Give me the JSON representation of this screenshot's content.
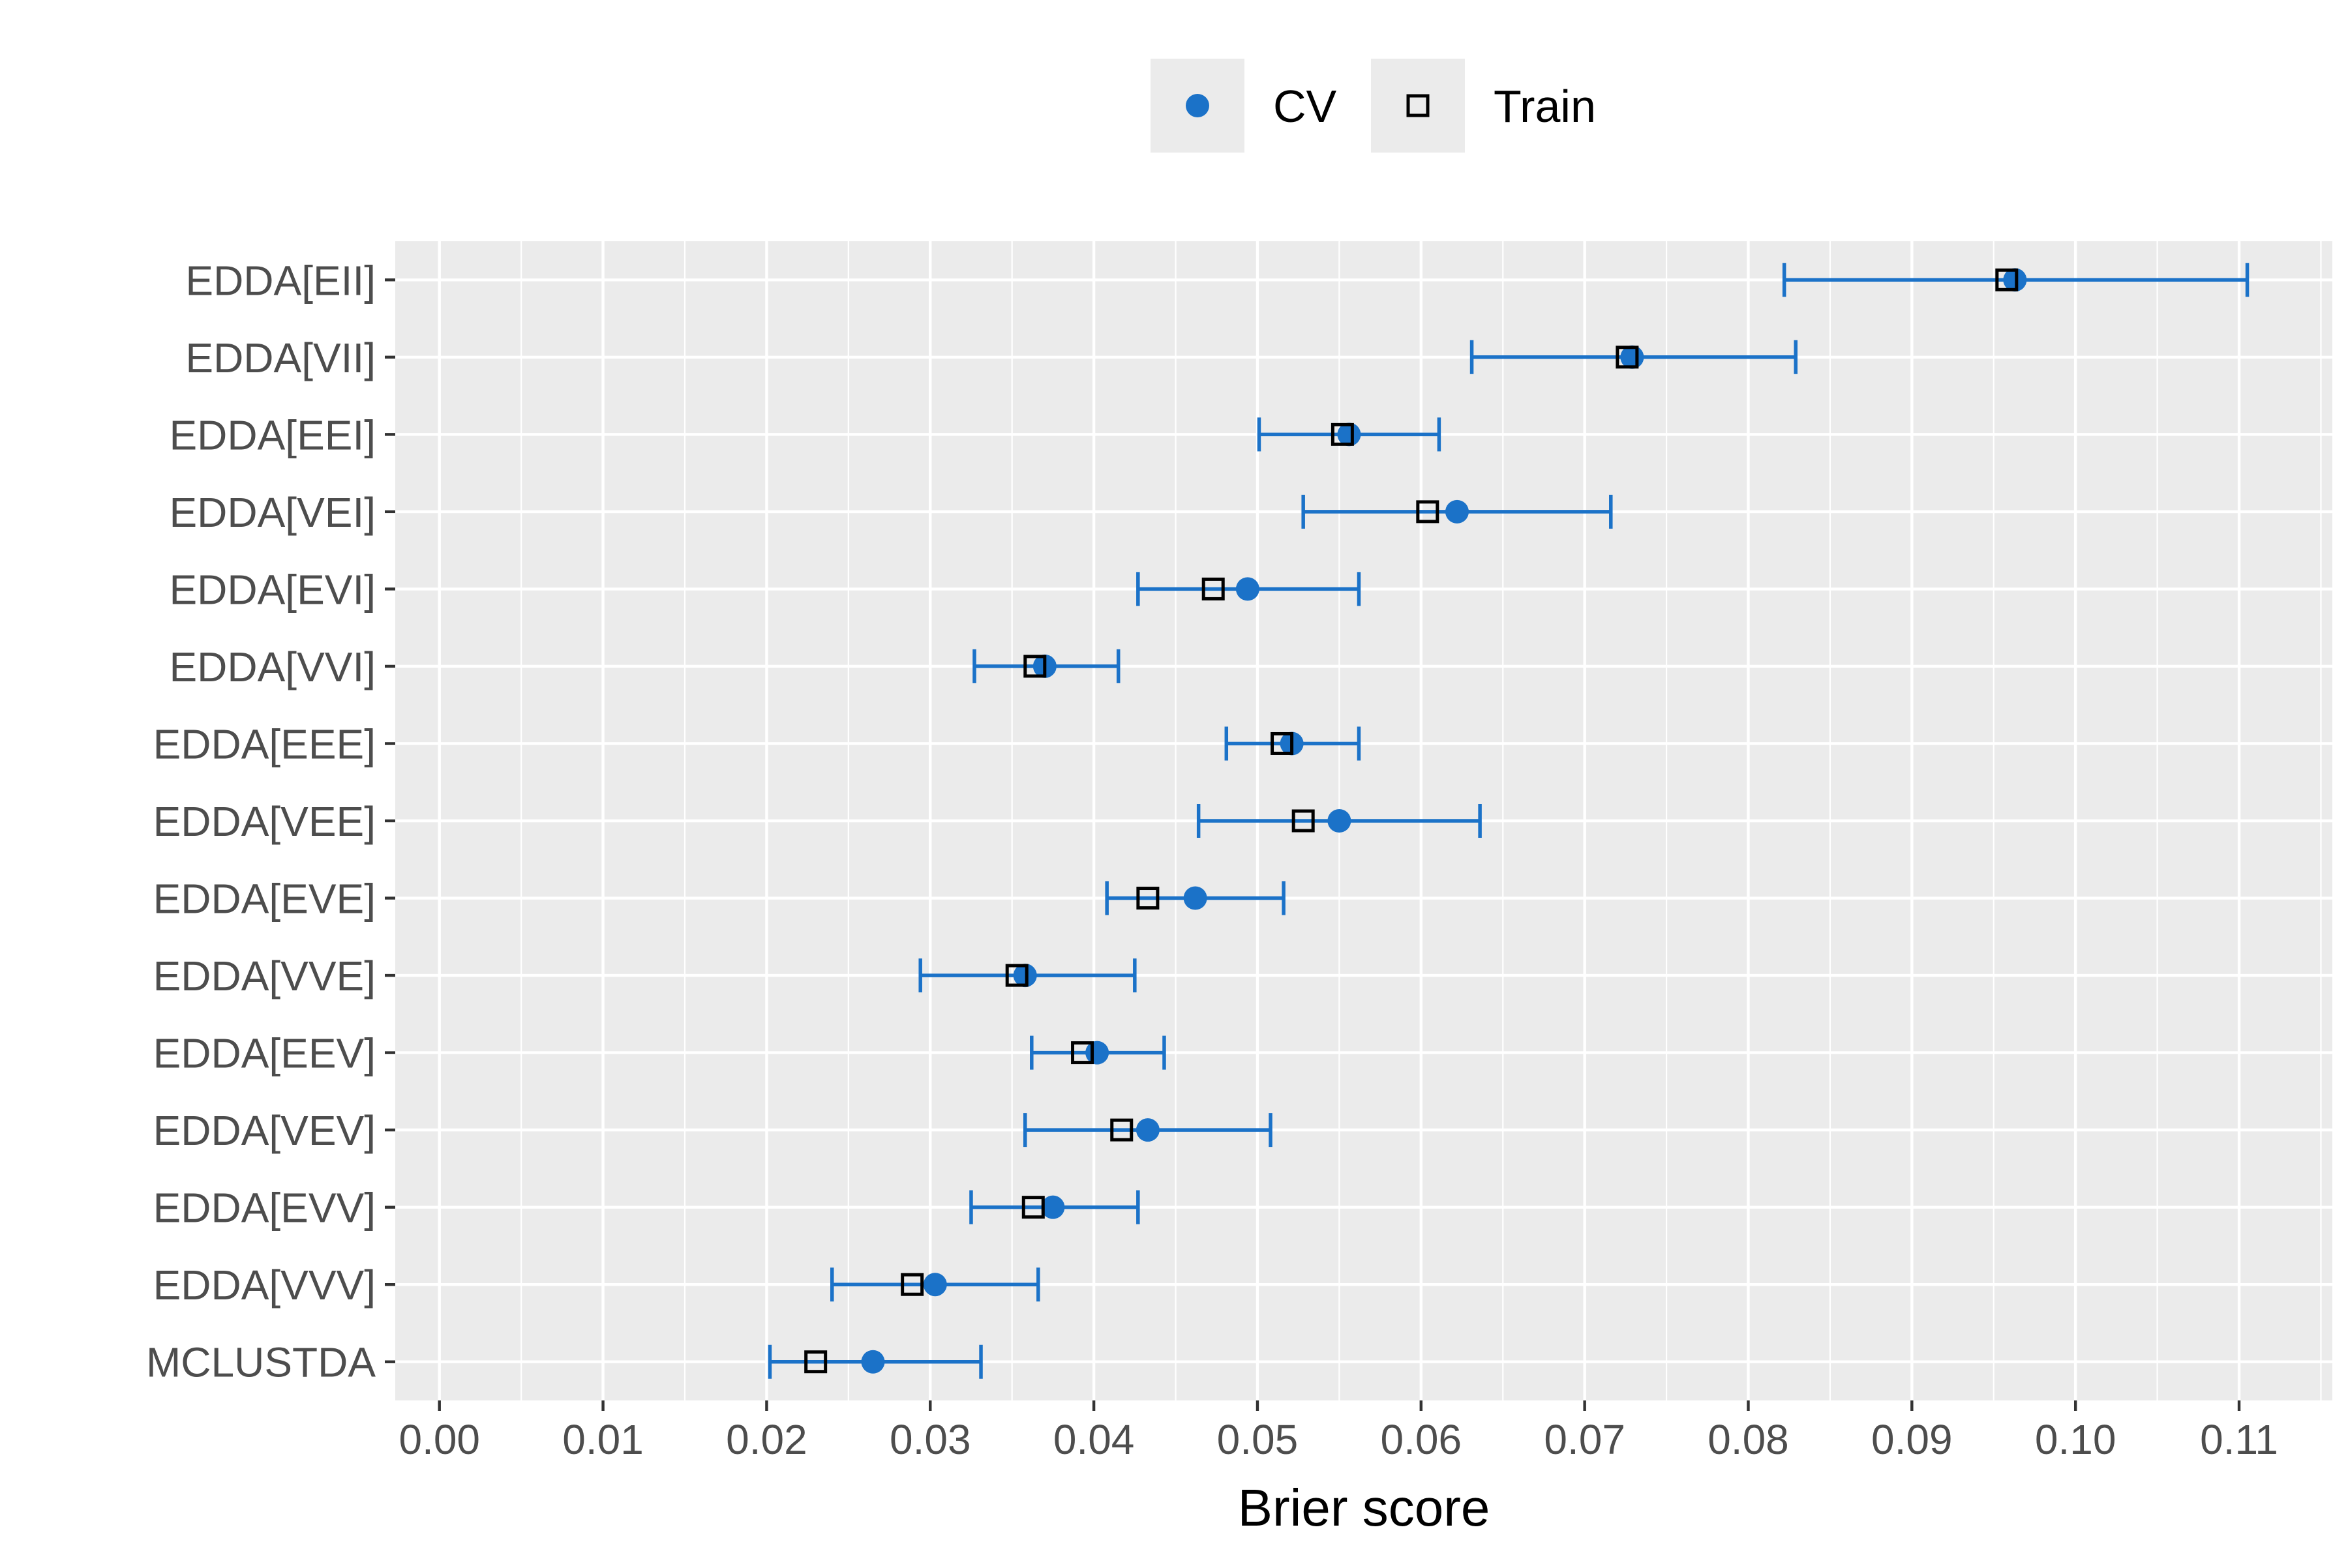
{
  "chart_data": {
    "type": "scatter",
    "subtype": "dot-plot with error bars",
    "orientation": "horizontal",
    "xlabel": "Brier score",
    "ylabel": "",
    "xlim": [
      -0.0027,
      0.1157
    ],
    "xticks": [
      "0.00",
      "0.01",
      "0.02",
      "0.03",
      "0.04",
      "0.05",
      "0.06",
      "0.07",
      "0.08",
      "0.09",
      "0.10",
      "0.11"
    ],
    "grid": true,
    "legend": {
      "position": "top",
      "entries": [
        {
          "label": "CV",
          "marker": "filled-circle",
          "color": "#1b72c8"
        },
        {
          "label": "Train",
          "marker": "open-square",
          "color": "#000000"
        }
      ]
    },
    "categories": [
      "EDDA[EII]",
      "EDDA[VII]",
      "EDDA[EEI]",
      "EDDA[VEI]",
      "EDDA[EVI]",
      "EDDA[VVI]",
      "EDDA[EEE]",
      "EDDA[VEE]",
      "EDDA[EVE]",
      "EDDA[VVE]",
      "EDDA[EEV]",
      "EDDA[VEV]",
      "EDDA[EVV]",
      "EDDA[VVV]",
      "MCLUSTDA"
    ],
    "series": [
      {
        "name": "CV",
        "values": [
          0.0963,
          0.0729,
          0.0556,
          0.0622,
          0.0494,
          0.037,
          0.0521,
          0.055,
          0.0462,
          0.0358,
          0.0402,
          0.0433,
          0.0375,
          0.0303,
          0.0265
        ],
        "error_low": [
          0.0822,
          0.0631,
          0.0501,
          0.0528,
          0.0427,
          0.0327,
          0.0481,
          0.0464,
          0.0408,
          0.0294,
          0.0362,
          0.0358,
          0.0325,
          0.024,
          0.0202
        ],
        "error_high": [
          0.1105,
          0.0829,
          0.0611,
          0.0716,
          0.0562,
          0.0415,
          0.0562,
          0.0636,
          0.0516,
          0.0425,
          0.0443,
          0.0508,
          0.0427,
          0.0366,
          0.0331
        ]
      },
      {
        "name": "Train",
        "values": [
          0.0958,
          0.0726,
          0.0552,
          0.0604,
          0.0473,
          0.0364,
          0.0515,
          0.0528,
          0.0433,
          0.0353,
          0.0393,
          0.0417,
          0.0363,
          0.0289,
          0.023
        ]
      }
    ],
    "colors": {
      "cv": "#1b72c8",
      "train": "#000000",
      "panel_background": "#ebebeb",
      "grid_major": "#ffffff",
      "tick_label": "#4d4d4d",
      "axis_title": "#000000"
    }
  }
}
